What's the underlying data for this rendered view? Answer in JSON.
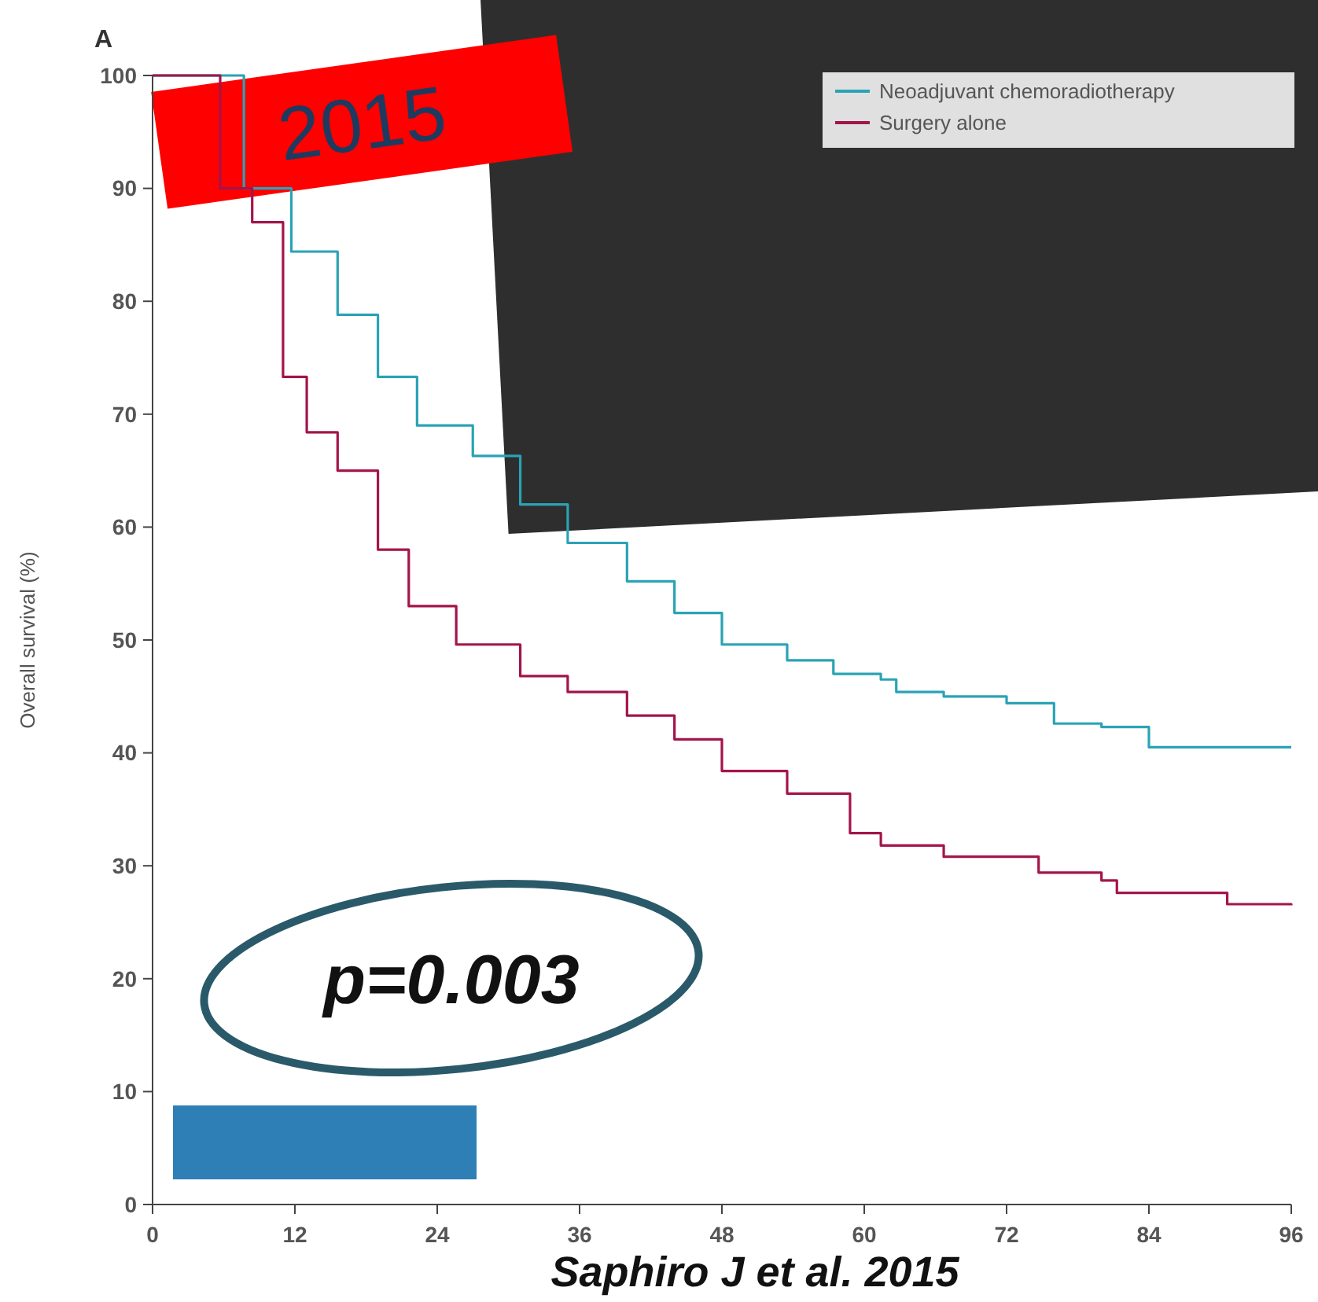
{
  "chart_data": {
    "type": "step",
    "title": "A",
    "ylabel": "Overall survival (%)",
    "annotations": [
      "2015",
      "p=0.003",
      "Saphiro J et al. 2015"
    ],
    "xlim": [
      0,
      96
    ],
    "xticks": [
      0,
      12,
      24,
      36,
      48,
      60,
      72,
      84,
      96
    ],
    "ylim": [
      0,
      100
    ],
    "yticks": [
      0,
      10,
      20,
      30,
      40,
      50,
      60,
      70,
      80,
      90,
      100
    ],
    "legend": "top right",
    "marker": "none",
    "line_style": "solid",
    "grid": false,
    "series": [
      {
        "name": "Neoadjuvant chemoradiotherapy",
        "color": "#2aa3b5",
        "x": [
          0,
          7.7,
          11.7,
          15.6,
          19,
          22.3,
          27,
          31,
          35,
          40,
          44,
          48,
          53.5,
          57.4,
          61.4,
          62.7,
          66.7,
          72,
          76,
          80,
          84,
          96
        ],
        "values": [
          100,
          90,
          84.4,
          78.8,
          73.3,
          69,
          66.3,
          62,
          58.6,
          55.2,
          52.4,
          49.6,
          48.2,
          47,
          46.5,
          45.4,
          45,
          44.4,
          42.6,
          42.3,
          40.5,
          40.5
        ]
      },
      {
        "name": "Surgery alone",
        "color": "#a3154a",
        "x": [
          0,
          5.7,
          8.4,
          11,
          13,
          15.6,
          19,
          21.6,
          25.6,
          31,
          35,
          40,
          44,
          48,
          53.5,
          58.8,
          61.4,
          66.7,
          74.7,
          80,
          81.3,
          90.6,
          96
        ],
        "values": [
          100,
          90,
          87,
          73.3,
          68.4,
          65,
          58,
          53,
          49.6,
          46.8,
          45.4,
          43.3,
          41.2,
          38.4,
          36.4,
          32.9,
          31.8,
          30.8,
          29.4,
          28.7,
          27.6,
          26.6,
          26.5
        ]
      }
    ]
  }
}
